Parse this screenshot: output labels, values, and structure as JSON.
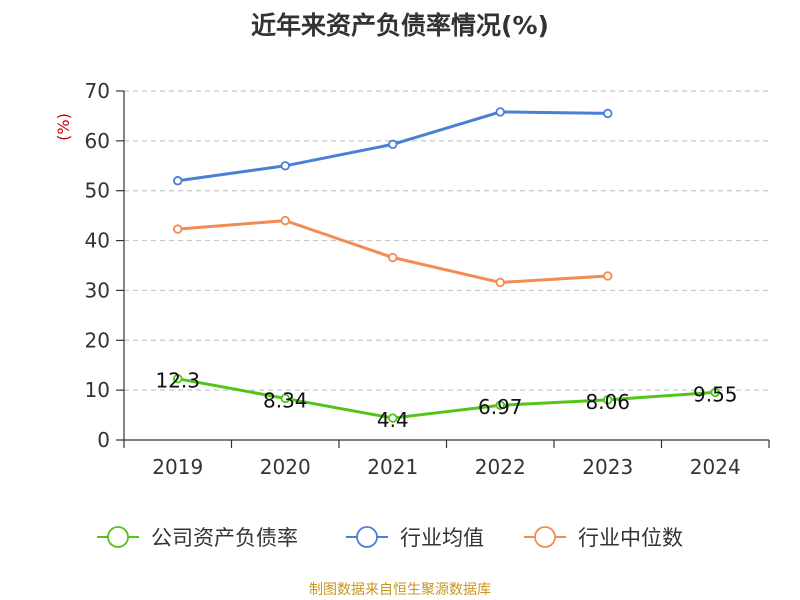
{
  "chart_data": {
    "type": "line",
    "title": "近年来资产负债率情况(%)",
    "ylabel": "(%)",
    "xlabel": "",
    "ylim": [
      0,
      70
    ],
    "yticks": [
      0,
      10,
      20,
      30,
      40,
      50,
      60,
      70
    ],
    "categories": [
      "2019",
      "2020",
      "2021",
      "2022",
      "2023",
      "2024"
    ],
    "grid": true,
    "legend_position": "bottom",
    "series": [
      {
        "name": "公司资产负债率",
        "color": "#52c41a",
        "values": [
          12.3,
          8.34,
          4.4,
          6.97,
          8.06,
          9.55
        ],
        "labels": [
          "12.3",
          "8.34",
          "4.4",
          "6.97",
          "8.06",
          "9.55"
        ]
      },
      {
        "name": "行业均值",
        "color": "#4a7fd6",
        "values": [
          52.0,
          55.0,
          59.3,
          65.8,
          65.5,
          null
        ]
      },
      {
        "name": "行业中位数",
        "color": "#f28b54",
        "values": [
          42.3,
          44.0,
          36.6,
          31.6,
          32.9,
          null
        ]
      }
    ],
    "axis_color": "#333333",
    "ylabel_color": "#cc0000"
  },
  "footer": {
    "source": "制图数据来自恒生聚源数据库"
  }
}
